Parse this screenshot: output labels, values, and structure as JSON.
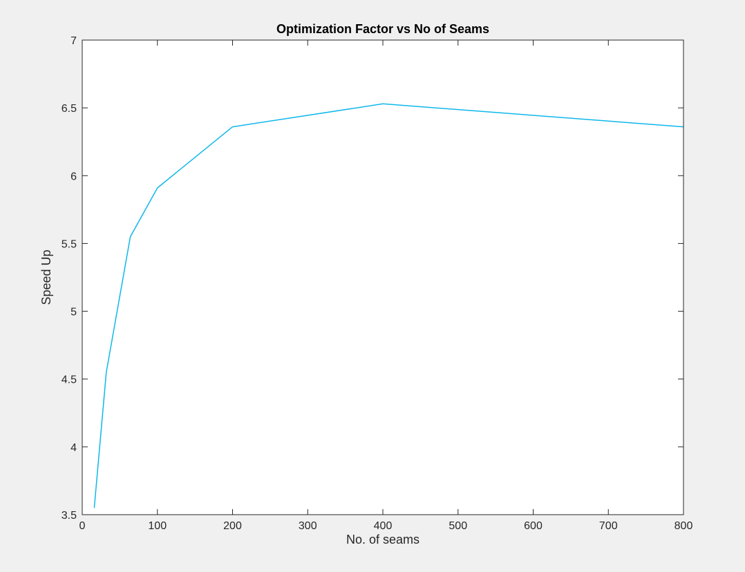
{
  "figure": {
    "background_color": "#f0f0f0",
    "axes_background_color": "#ffffff"
  },
  "chart_data": {
    "type": "line",
    "title": "Optimization Factor vs No of Seams",
    "xlabel": "No. of seams",
    "ylabel": "Speed Up",
    "xlim": [
      0,
      800
    ],
    "ylim": [
      3.5,
      7
    ],
    "xticks": [
      0,
      100,
      200,
      300,
      400,
      500,
      600,
      700,
      800
    ],
    "yticks": [
      3.5,
      4,
      4.5,
      5,
      5.5,
      6,
      6.5,
      7
    ],
    "xtick_labels": [
      "0",
      "100",
      "200",
      "300",
      "400",
      "500",
      "600",
      "700",
      "800"
    ],
    "ytick_labels": [
      "3.5",
      "4",
      "4.5",
      "5",
      "5.5",
      "6",
      "6.5",
      "7"
    ],
    "grid": false,
    "legend": "none",
    "series": [
      {
        "color": "#0eb7ea",
        "x": [
          16,
          32,
          64,
          100,
          200,
          400,
          800
        ],
        "y": [
          3.55,
          4.55,
          5.55,
          5.91,
          6.36,
          6.53,
          6.36
        ]
      }
    ]
  }
}
